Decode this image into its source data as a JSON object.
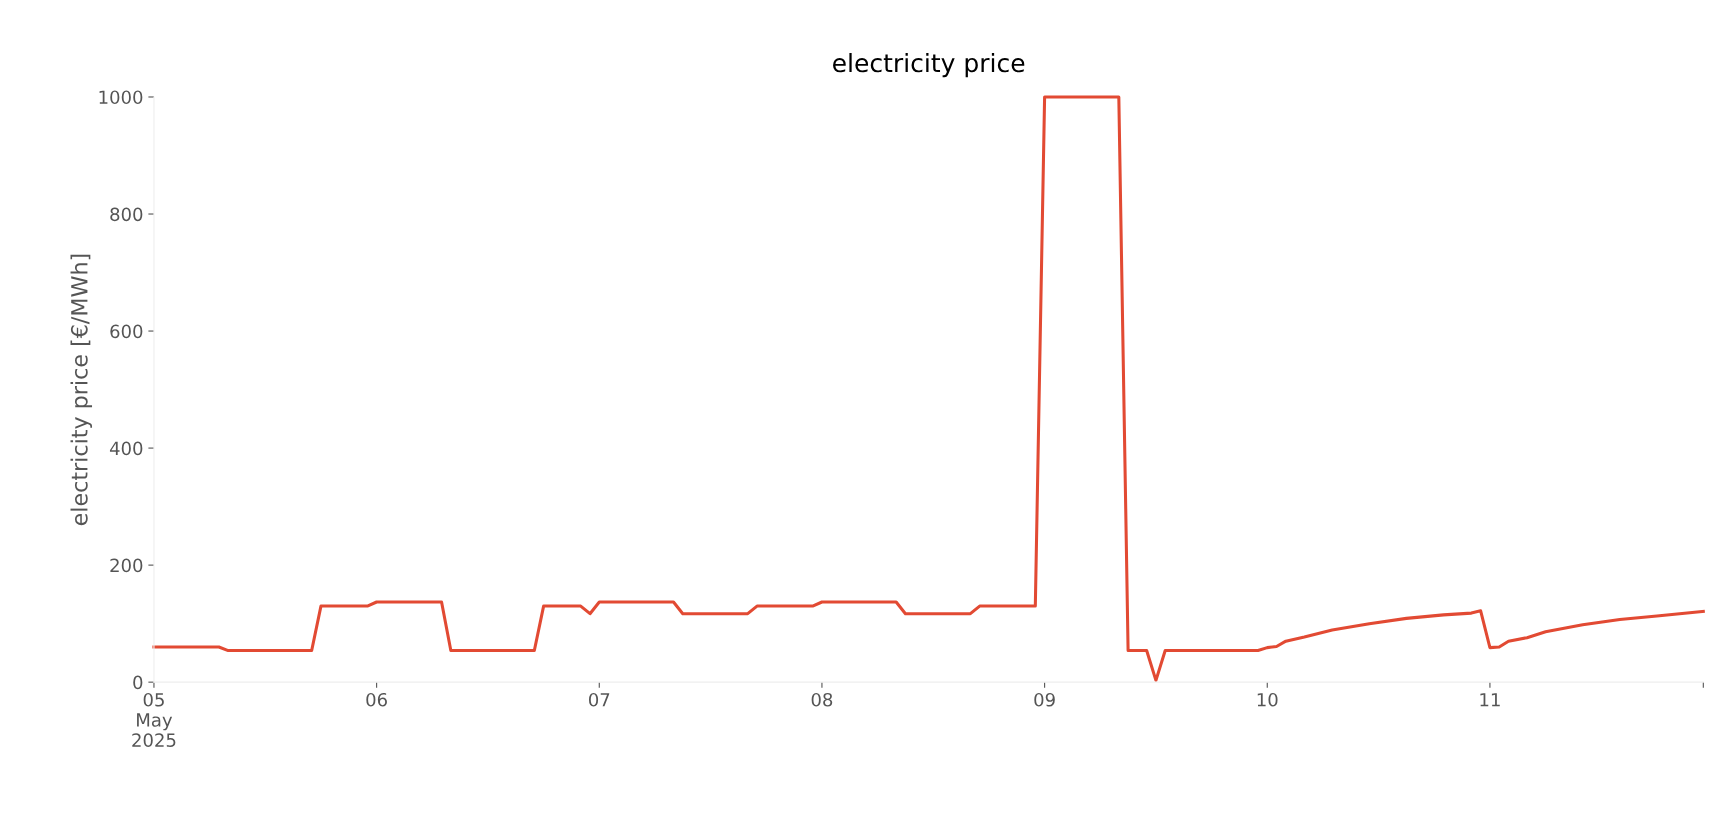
{
  "chart_data": {
    "type": "line",
    "title": "electricity price",
    "ylabel": "electricity price [€/MWh]",
    "x": [
      "2025-05-05T00:00",
      "2025-05-05T07:00",
      "2025-05-05T08:00",
      "2025-05-05T17:00",
      "2025-05-05T18:00",
      "2025-05-05T23:00",
      "2025-05-06T00:00",
      "2025-05-06T07:00",
      "2025-05-06T08:00",
      "2025-05-06T17:00",
      "2025-05-06T18:00",
      "2025-05-06T22:00",
      "2025-05-06T23:00",
      "2025-05-07T00:00",
      "2025-05-07T08:00",
      "2025-05-07T09:00",
      "2025-05-07T16:00",
      "2025-05-07T17:00",
      "2025-05-07T23:00",
      "2025-05-08T00:00",
      "2025-05-08T08:00",
      "2025-05-08T09:00",
      "2025-05-08T16:00",
      "2025-05-08T17:00",
      "2025-05-08T23:00",
      "2025-05-09T00:00",
      "2025-05-09T08:00",
      "2025-05-09T09:00",
      "2025-05-09T11:00",
      "2025-05-09T12:00",
      "2025-05-09T13:00",
      "2025-05-09T23:00",
      "2025-05-10T00:00",
      "2025-05-10T01:00",
      "2025-05-10T02:00",
      "2025-05-10T04:00",
      "2025-05-10T07:00",
      "2025-05-10T11:00",
      "2025-05-10T15:00",
      "2025-05-10T19:00",
      "2025-05-10T22:00",
      "2025-05-10T23:00",
      "2025-05-11T00:00",
      "2025-05-11T01:00",
      "2025-05-11T02:00",
      "2025-05-11T04:00",
      "2025-05-11T06:00",
      "2025-05-11T10:00",
      "2025-05-11T14:00",
      "2025-05-11T18:00",
      "2025-05-11T23:00"
    ],
    "series": [
      {
        "color": "#e24a33",
        "values": [
          60,
          60,
          54,
          54,
          130,
          130,
          137,
          137,
          54,
          54,
          130,
          130,
          117,
          137,
          137,
          117,
          117,
          130,
          130,
          137,
          137,
          117,
          117,
          130,
          130,
          1000,
          1000,
          54,
          54,
          3,
          54,
          54,
          59,
          61,
          70,
          77,
          89,
          100,
          109,
          115,
          118,
          122,
          59,
          60,
          70,
          76,
          86,
          98,
          107,
          113,
          121
        ]
      }
    ],
    "xlim": [
      "2025-05-05T00:00",
      "2025-05-11T23:00"
    ],
    "xticks": [
      {
        "value": "2025-05-05",
        "label": "05\nMay\n2025"
      },
      {
        "value": "2025-05-06",
        "label": "06"
      },
      {
        "value": "2025-05-07",
        "label": "07"
      },
      {
        "value": "2025-05-08",
        "label": "08"
      },
      {
        "value": "2025-05-09",
        "label": "09"
      },
      {
        "value": "2025-05-10",
        "label": "10"
      },
      {
        "value": "2025-05-11",
        "label": "11"
      },
      {
        "value": "2025-05-11T23:00",
        "label": null
      }
    ],
    "ylim": [
      0,
      1000
    ],
    "yticks": [
      0,
      200,
      400,
      600,
      800,
      1000
    ],
    "grid": false,
    "legend": false,
    "marker": "none",
    "line_style": "solid"
  }
}
